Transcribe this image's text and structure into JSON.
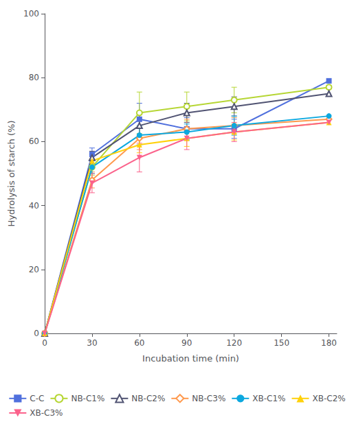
{
  "chart_data": {
    "type": "line",
    "x": [
      0,
      30,
      60,
      90,
      120,
      180
    ],
    "series": [
      {
        "name": "C-C",
        "values": [
          0,
          56,
          67,
          64,
          64,
          79
        ],
        "yerr": [
          0,
          2.0,
          5.0,
          3.5,
          3.0,
          0
        ],
        "marker": "square"
      },
      {
        "name": "NB-C1%",
        "values": [
          0,
          52,
          69,
          71,
          73,
          77
        ],
        "yerr": [
          0,
          2.5,
          6.5,
          4.5,
          4.0,
          0
        ],
        "marker": "open_circle"
      },
      {
        "name": "NB-C2%",
        "values": [
          0,
          55,
          65,
          69,
          71,
          75
        ],
        "yerr": [
          0,
          2.0,
          3.5,
          3.0,
          3.0,
          0
        ],
        "marker": "open_triangle"
      },
      {
        "name": "NB-C3%",
        "values": [
          0,
          48,
          61,
          64,
          65,
          67
        ],
        "yerr": [
          0,
          2.5,
          3.5,
          3.0,
          2.5,
          0
        ],
        "marker": "open_diamond"
      },
      {
        "name": "XB-C1%",
        "values": [
          0,
          52,
          62,
          63,
          65,
          68
        ],
        "yerr": [
          0,
          2.0,
          3.0,
          2.5,
          3.0,
          0
        ],
        "marker": "circle"
      },
      {
        "name": "XB-C2%",
        "values": [
          0,
          54,
          59,
          61,
          63,
          66
        ],
        "yerr": [
          0,
          2.0,
          2.5,
          2.5,
          2.5,
          0
        ],
        "marker": "triangle"
      },
      {
        "name": "XB-C3%",
        "values": [
          0,
          47,
          55,
          61,
          63,
          66
        ],
        "yerr": [
          0,
          3.0,
          4.5,
          3.5,
          3.0,
          0
        ],
        "marker": "triangle_down"
      }
    ],
    "xlabel": "Incubation time (min)",
    "ylabel": "Hydrolysis of starch (%)",
    "xlim": [
      0,
      185
    ],
    "ylim": [
      0,
      100
    ],
    "xticks": [
      0,
      30,
      60,
      90,
      120,
      150,
      180
    ],
    "yticks": [
      0,
      20,
      40,
      60,
      80,
      100
    ],
    "grid": false,
    "legend": "bottom"
  }
}
